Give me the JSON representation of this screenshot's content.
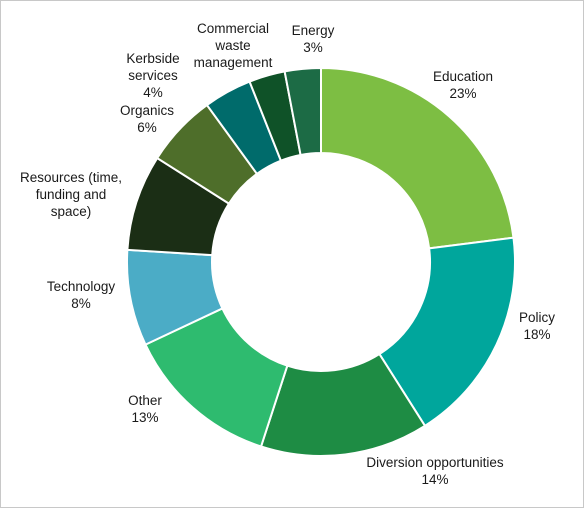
{
  "chart_data": {
    "type": "pie",
    "variant": "donut",
    "title": "",
    "legend": "none",
    "slices": [
      {
        "label": "Education",
        "value": 23,
        "value_text": "23%",
        "color": "#7dbe43"
      },
      {
        "label": "Policy",
        "value": 18,
        "value_text": "18%",
        "color": "#00a69c"
      },
      {
        "label": "Diversion opportunities",
        "value": 14,
        "value_text": "14%",
        "color": "#1e8c44"
      },
      {
        "label": "Other",
        "value": 13,
        "value_text": "13%",
        "color": "#2ebb6f"
      },
      {
        "label": "Technology",
        "value": 8,
        "value_text": "8%",
        "color": "#4bacc6"
      },
      {
        "label": "Resources (time, funding and space)",
        "value": 8,
        "value_text": "",
        "color": "#1b2e15"
      },
      {
        "label": "Organics",
        "value": 6,
        "value_text": "6%",
        "color": "#4e6e2a"
      },
      {
        "label": "Kerbside services",
        "value": 4,
        "value_text": "4%",
        "color": "#006b6b"
      },
      {
        "label": "Commercial waste management",
        "value": 3,
        "value_text": "",
        "color": "#0f5228"
      },
      {
        "label": "Energy",
        "value": 3,
        "value_text": "3%",
        "color": "#1c6b45"
      }
    ]
  }
}
